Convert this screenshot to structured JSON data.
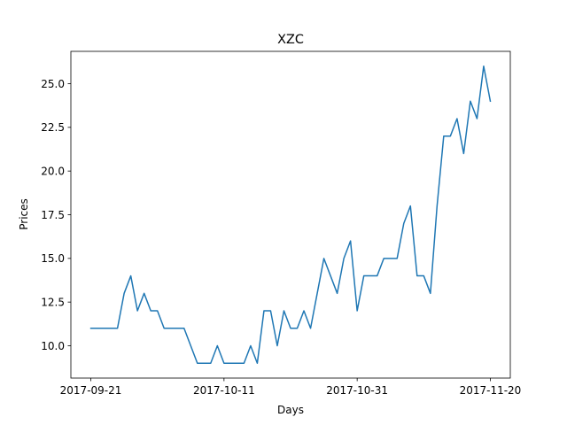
{
  "chart_data": {
    "type": "line",
    "title": "XZC",
    "xlabel": "Days",
    "ylabel": "Prices",
    "x_ticks": [
      "2017-09-21",
      "2017-10-11",
      "2017-10-31",
      "2017-11-20"
    ],
    "y_ticks": [
      "10.0",
      "12.5",
      "15.0",
      "17.5",
      "20.0",
      "22.5",
      "25.0"
    ],
    "start_date": "2017-09-21",
    "xlim": [
      "2017-09-18",
      "2017-11-23"
    ],
    "ylim": [
      8.15,
      26.85
    ],
    "grid": false,
    "legend": "none",
    "series": [
      {
        "color": "#1f77b4",
        "x": [
          "2017-09-21",
          "2017-09-22",
          "2017-09-23",
          "2017-09-24",
          "2017-09-25",
          "2017-09-26",
          "2017-09-27",
          "2017-09-28",
          "2017-09-29",
          "2017-09-30",
          "2017-10-01",
          "2017-10-02",
          "2017-10-03",
          "2017-10-04",
          "2017-10-05",
          "2017-10-06",
          "2017-10-07",
          "2017-10-08",
          "2017-10-09",
          "2017-10-10",
          "2017-10-11",
          "2017-10-12",
          "2017-10-13",
          "2017-10-14",
          "2017-10-15",
          "2017-10-16",
          "2017-10-17",
          "2017-10-18",
          "2017-10-19",
          "2017-10-20",
          "2017-10-21",
          "2017-10-22",
          "2017-10-23",
          "2017-10-24",
          "2017-10-25",
          "2017-10-26",
          "2017-10-27",
          "2017-10-28",
          "2017-10-29",
          "2017-10-30",
          "2017-10-31",
          "2017-11-01",
          "2017-11-02",
          "2017-11-03",
          "2017-11-04",
          "2017-11-05",
          "2017-11-06",
          "2017-11-07",
          "2017-11-08",
          "2017-11-09",
          "2017-11-10",
          "2017-11-11",
          "2017-11-12",
          "2017-11-13",
          "2017-11-14",
          "2017-11-15",
          "2017-11-16",
          "2017-11-17",
          "2017-11-18",
          "2017-11-19",
          "2017-11-20"
        ],
        "values": [
          11,
          11,
          11,
          11,
          11,
          13,
          14,
          12,
          13,
          12,
          12,
          11,
          11,
          11,
          11,
          10,
          9,
          9,
          9,
          10,
          9,
          9,
          9,
          9,
          10,
          9,
          12,
          12,
          10,
          12,
          11,
          11,
          12,
          11,
          13,
          15,
          14,
          13,
          15,
          16,
          12,
          14,
          14,
          14,
          15,
          15,
          15,
          17,
          18,
          14,
          14,
          13,
          18,
          22,
          22,
          23,
          21,
          24,
          23,
          26,
          24
        ]
      }
    ]
  }
}
